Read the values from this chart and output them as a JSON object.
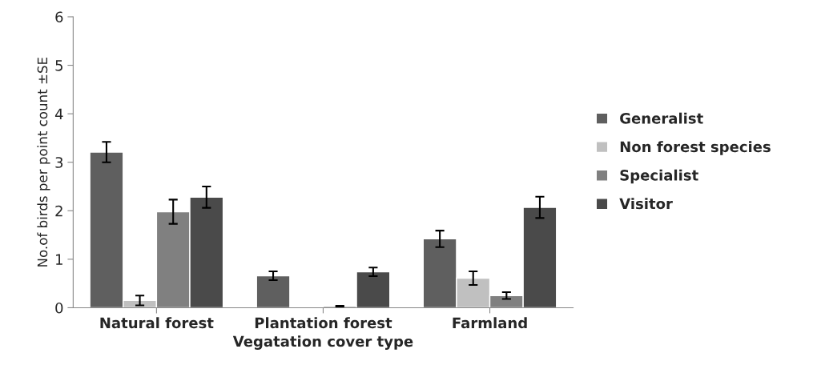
{
  "chart_data": {
    "type": "bar",
    "xlabel": "Vegatation cover type",
    "ylabel": "No.of birds per point count ±SE",
    "categories": [
      "Natural forest",
      "Plantation forest",
      "Farmland"
    ],
    "series": [
      {
        "name": "Generalist",
        "color": "#5f5f5f",
        "values": [
          3.21,
          0.66,
          1.42
        ],
        "errors": [
          0.21,
          0.09,
          0.17
        ]
      },
      {
        "name": "Non forest species",
        "color": "#c0c0c0",
        "values": [
          0.15,
          null,
          0.61
        ],
        "errors": [
          0.1,
          null,
          0.14
        ]
      },
      {
        "name": "Specialist",
        "color": "#808080",
        "values": [
          1.98,
          0.03,
          0.25
        ],
        "errors": [
          0.25,
          0.01,
          0.07
        ]
      },
      {
        "name": "Visitor",
        "color": "#4a4a4a",
        "values": [
          2.28,
          0.74,
          2.07
        ],
        "errors": [
          0.22,
          0.09,
          0.22
        ]
      }
    ],
    "ylim": [
      0,
      6
    ],
    "yticks": [
      0,
      1,
      2,
      3,
      4,
      5,
      6
    ],
    "grid": false,
    "legend": "right"
  }
}
